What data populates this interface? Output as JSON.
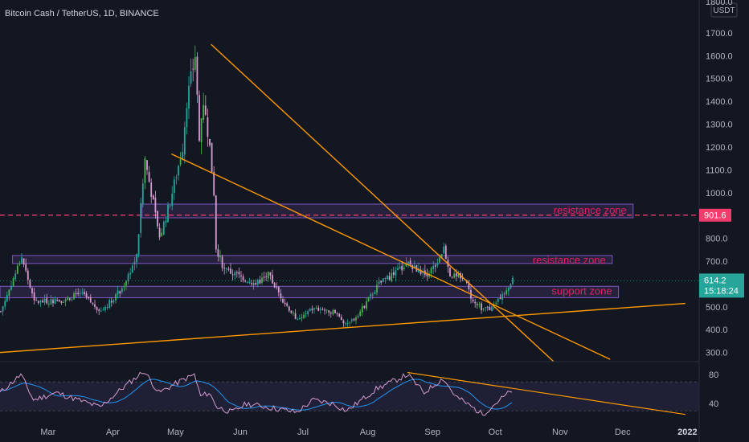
{
  "header": {
    "symbol_title": "Bitcoin Cash / TetherUS, 1D, BINANCE"
  },
  "price_axis": {
    "unit": "USDT",
    "ticks": [
      "1800.0",
      "1700.0",
      "1600.0",
      "1500.0",
      "1400.0",
      "1300.0",
      "1200.0",
      "1100.0",
      "1000.0",
      "800.0",
      "700.0",
      "500.0",
      "400.0",
      "300.0"
    ],
    "tick_values": [
      1800,
      1700,
      1600,
      1500,
      1400,
      1300,
      1200,
      1100,
      1000,
      800,
      700,
      500,
      400,
      300
    ],
    "level_label": "901.6",
    "last_price": "614.2",
    "countdown": "15:18:24"
  },
  "osc_axis": {
    "ticks": [
      "80",
      "40"
    ],
    "tick_values": [
      80,
      40
    ]
  },
  "time_axis": {
    "labels": [
      "Mar",
      "Apr",
      "May",
      "Jun",
      "Jul",
      "Aug",
      "Sep",
      "Oct",
      "Nov",
      "Dec",
      "2022"
    ],
    "label_month_index": [
      0,
      1,
      2,
      3,
      4,
      5,
      6,
      7,
      8,
      9,
      10
    ]
  },
  "annotations": {
    "zone_resistance_1": "resistance zone",
    "zone_resistance_2": "resistance zone",
    "zone_support": "support zone"
  },
  "colors": {
    "background": "#131722",
    "up": "#26a69a",
    "up_bright": "#4caf50",
    "down": "#d69cd0",
    "trendline": "#ff9800",
    "zone_border": "#7e57c2",
    "zone_text": "#e91e63",
    "dashed_level": "#f23d6c",
    "rsi_line": "#d69cd0",
    "rsi_ma": "#2196f3"
  },
  "chart_data": {
    "type": "candlestick",
    "title": "Bitcoin Cash / TetherUS, 1D, BINANCE",
    "ylim": [
      260,
      1830
    ],
    "y_scale": "linear",
    "level": 901.6,
    "last_price": 614.2,
    "trendlines": [
      {
        "from": [
          "2021-05-18",
          1650
        ],
        "to": [
          "2021-10-29",
          260
        ]
      },
      {
        "from": [
          "2021-04-29",
          1170
        ],
        "to": [
          "2021-11-25",
          270
        ]
      },
      {
        "from": [
          "2021-02-06",
          300
        ],
        "to": [
          "2021-12-31",
          515
        ]
      }
    ],
    "zones": [
      {
        "name": "resistance zone",
        "from": "2021-04-15",
        "to": "2021-12-06",
        "y_low": 890,
        "y_high": 950
      },
      {
        "name": "resistance zone",
        "from": "2021-02-12",
        "to": "2021-11-26",
        "y_low": 690,
        "y_high": 725
      },
      {
        "name": "support zone",
        "from": "2021-02-06",
        "to": "2021-11-29",
        "y_low": 540,
        "y_high": 590
      }
    ],
    "price_anchors": [
      [
        "2021-02-06",
        480
      ],
      [
        "2021-02-16",
        720
      ],
      [
        "2021-02-22",
        520
      ],
      [
        "2021-03-08",
        530
      ],
      [
        "2021-03-16",
        560
      ],
      [
        "2021-03-26",
        480
      ],
      [
        "2021-04-05",
        580
      ],
      [
        "2021-04-12",
        720
      ],
      [
        "2021-04-16",
        1150
      ],
      [
        "2021-04-23",
        800
      ],
      [
        "2021-04-28",
        960
      ],
      [
        "2021-05-04",
        1200
      ],
      [
        "2021-05-06",
        1400
      ],
      [
        "2021-05-08",
        1500
      ],
      [
        "2021-05-10",
        1600
      ],
      [
        "2021-05-12",
        1250
      ],
      [
        "2021-05-14",
        1400
      ],
      [
        "2021-05-17",
        1200
      ],
      [
        "2021-05-19",
        1000
      ],
      [
        "2021-05-20",
        760
      ],
      [
        "2021-05-24",
        660
      ],
      [
        "2021-05-30",
        640
      ],
      [
        "2021-06-08",
        600
      ],
      [
        "2021-06-14",
        640
      ],
      [
        "2021-06-21",
        530
      ],
      [
        "2021-06-28",
        440
      ],
      [
        "2021-07-05",
        490
      ],
      [
        "2021-07-15",
        480
      ],
      [
        "2021-07-22",
        420
      ],
      [
        "2021-07-28",
        480
      ],
      [
        "2021-08-06",
        600
      ],
      [
        "2021-08-14",
        650
      ],
      [
        "2021-08-20",
        690
      ],
      [
        "2021-08-28",
        640
      ],
      [
        "2021-09-02",
        680
      ],
      [
        "2021-09-06",
        760
      ],
      [
        "2021-09-09",
        640
      ],
      [
        "2021-09-16",
        620
      ],
      [
        "2021-09-20",
        520
      ],
      [
        "2021-09-25",
        490
      ],
      [
        "2021-09-30",
        500
      ],
      [
        "2021-10-04",
        560
      ],
      [
        "2021-10-09",
        614
      ]
    ],
    "rsi_ylim": [
      18,
      98
    ],
    "rsi_band": [
      30,
      70
    ],
    "rsi_anchors": [
      [
        "2021-02-06",
        55
      ],
      [
        "2021-02-16",
        80
      ],
      [
        "2021-02-22",
        45
      ],
      [
        "2021-03-05",
        55
      ],
      [
        "2021-03-26",
        35
      ],
      [
        "2021-04-05",
        60
      ],
      [
        "2021-04-16",
        85
      ],
      [
        "2021-04-23",
        55
      ],
      [
        "2021-05-04",
        72
      ],
      [
        "2021-05-10",
        80
      ],
      [
        "2021-05-13",
        50
      ],
      [
        "2021-05-17",
        55
      ],
      [
        "2021-05-21",
        35
      ],
      [
        "2021-05-28",
        28
      ],
      [
        "2021-06-04",
        40
      ],
      [
        "2021-06-20",
        32
      ],
      [
        "2021-06-28",
        28
      ],
      [
        "2021-07-06",
        45
      ],
      [
        "2021-07-15",
        40
      ],
      [
        "2021-07-22",
        30
      ],
      [
        "2021-08-05",
        60
      ],
      [
        "2021-08-20",
        80
      ],
      [
        "2021-08-28",
        55
      ],
      [
        "2021-09-06",
        75
      ],
      [
        "2021-09-12",
        50
      ],
      [
        "2021-09-20",
        35
      ],
      [
        "2021-09-25",
        25
      ],
      [
        "2021-10-01",
        40
      ],
      [
        "2021-10-09",
        58
      ]
    ],
    "rsi_trendline": {
      "from": [
        "2021-08-20",
        83
      ],
      "to": [
        "2021-12-31",
        25
      ]
    }
  }
}
